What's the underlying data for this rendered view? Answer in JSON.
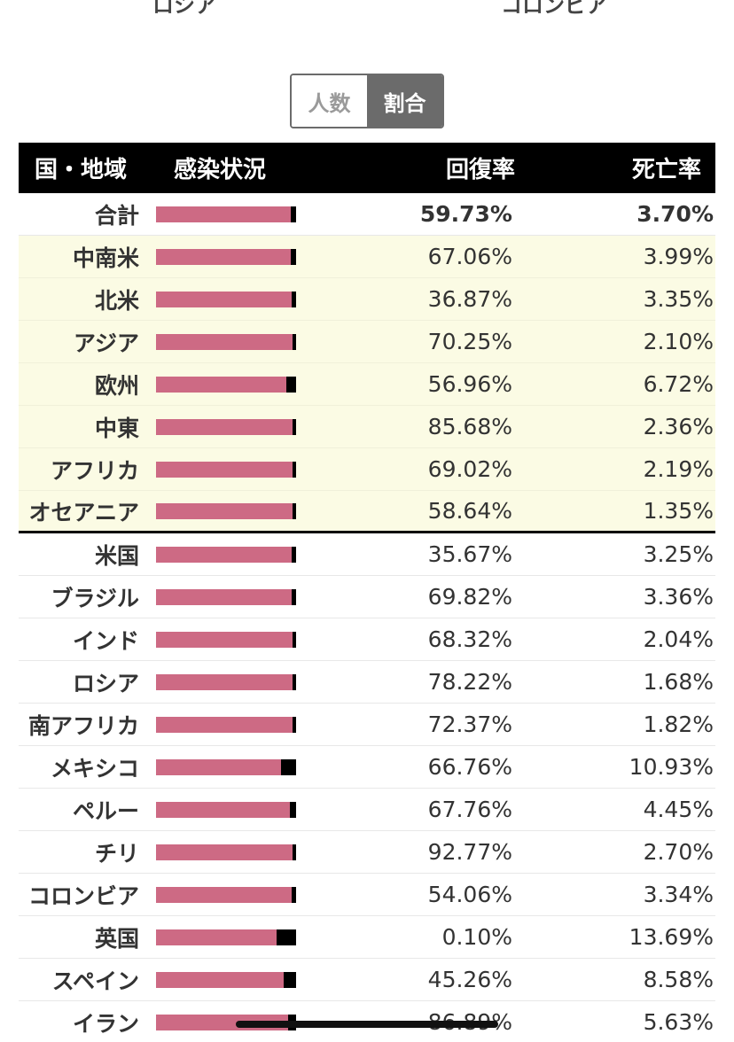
{
  "top_labels": {
    "left": "ロシア",
    "right": "コロンビア"
  },
  "toggle": {
    "count_label": "人数",
    "ratio_label": "割合"
  },
  "table": {
    "headers": {
      "country": "国・地域",
      "status": "感染状況",
      "recovery": "回復率",
      "death": "死亡率"
    },
    "colors": {
      "active": "#cd6a84",
      "death": "#000000",
      "region_bg": "#fbfbe4"
    },
    "rows": [
      {
        "name": "合計",
        "recovery": "59.73%",
        "death": "3.70%",
        "type": "total",
        "death_frac": 0.037
      },
      {
        "name": "中南米",
        "recovery": "67.06%",
        "death": "3.99%",
        "type": "region",
        "death_frac": 0.0399
      },
      {
        "name": "北米",
        "recovery": "36.87%",
        "death": "3.35%",
        "type": "region",
        "death_frac": 0.0335
      },
      {
        "name": "アジア",
        "recovery": "70.25%",
        "death": "2.10%",
        "type": "region",
        "death_frac": 0.021
      },
      {
        "name": "欧州",
        "recovery": "56.96%",
        "death": "6.72%",
        "type": "region",
        "death_frac": 0.0672
      },
      {
        "name": "中東",
        "recovery": "85.68%",
        "death": "2.36%",
        "type": "region",
        "death_frac": 0.0236
      },
      {
        "name": "アフリカ",
        "recovery": "69.02%",
        "death": "2.19%",
        "type": "region",
        "death_frac": 0.0219
      },
      {
        "name": "オセアニア",
        "recovery": "58.64%",
        "death": "1.35%",
        "type": "region-last",
        "death_frac": 0.0135
      },
      {
        "name": "米国",
        "recovery": "35.67%",
        "death": "3.25%",
        "type": "country",
        "death_frac": 0.0325
      },
      {
        "name": "ブラジル",
        "recovery": "69.82%",
        "death": "3.36%",
        "type": "country",
        "death_frac": 0.0336
      },
      {
        "name": "インド",
        "recovery": "68.32%",
        "death": "2.04%",
        "type": "country",
        "death_frac": 0.0204
      },
      {
        "name": "ロシア",
        "recovery": "78.22%",
        "death": "1.68%",
        "type": "country",
        "death_frac": 0.0168
      },
      {
        "name": "南アフリカ",
        "recovery": "72.37%",
        "death": "1.82%",
        "type": "country",
        "death_frac": 0.0182
      },
      {
        "name": "メキシコ",
        "recovery": "66.76%",
        "death": "10.93%",
        "type": "country",
        "death_frac": 0.1093
      },
      {
        "name": "ペルー",
        "recovery": "67.76%",
        "death": "4.45%",
        "type": "country",
        "death_frac": 0.0445
      },
      {
        "name": "チリ",
        "recovery": "92.77%",
        "death": "2.70%",
        "type": "country",
        "death_frac": 0.027
      },
      {
        "name": "コロンビア",
        "recovery": "54.06%",
        "death": "3.34%",
        "type": "country",
        "death_frac": 0.0334
      },
      {
        "name": "英国",
        "recovery": "0.10%",
        "death": "13.69%",
        "type": "country",
        "death_frac": 0.1369
      },
      {
        "name": "スペイン",
        "recovery": "45.26%",
        "death": "8.58%",
        "type": "country",
        "death_frac": 0.0858
      },
      {
        "name": "イラン",
        "recovery": "86.89%",
        "death": "5.63%",
        "type": "country",
        "death_frac": 0.0563
      }
    ]
  }
}
